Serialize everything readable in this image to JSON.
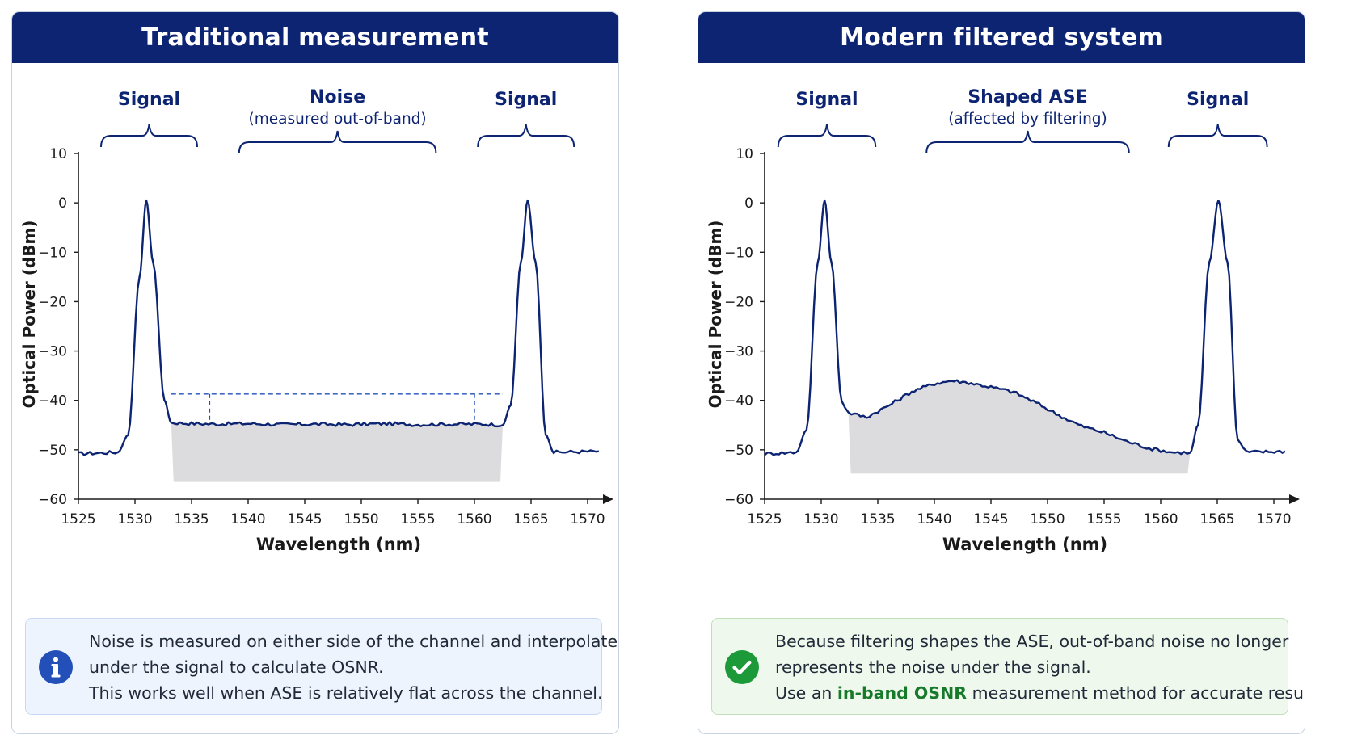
{
  "panels": [
    {
      "title": "Traditional measurement",
      "chart_data": {
        "type": "line",
        "xlabel": "Wavelength (nm)",
        "ylabel": "Optical Power (dBm)",
        "xlim": [
          1525,
          1571
        ],
        "ylim": [
          -60,
          10
        ],
        "xticks": [
          1525,
          1530,
          1535,
          1540,
          1545,
          1550,
          1555,
          1560,
          1565,
          1570
        ],
        "yticks": [
          10,
          0,
          -10,
          -20,
          -30,
          -40,
          -50,
          -60
        ],
        "grid": false,
        "series": [
          {
            "x": [
              1525,
              1528.5,
              1529.4,
              1530.4,
              1531,
              1531.6,
              1532.6,
              1533.2,
              1534,
              1537,
              1540,
              1543,
              1546,
              1549,
              1552,
              1555,
              1558,
              1561,
              1562.5,
              1563.2,
              1564.1,
              1564.7,
              1565.4,
              1566.3,
              1567,
              1571
            ],
            "y": [
              -50.8,
              -50.5,
              -47,
              -15,
              0.5,
              -12,
              -40,
              -44.5,
              -44.6,
              -44.8,
              -44.7,
              -44.9,
              -44.8,
              -44.9,
              -44.7,
              -44.9,
              -44.8,
              -44.8,
              -45,
              -41,
              -12,
              0.5,
              -12,
              -47,
              -50.5,
              -50.3
            ]
          }
        ],
        "noise_fill": {
          "x": [
            1533.2,
            1562.5
          ],
          "floor": -56.5
        },
        "interpolation_line": {
          "y": -38.7,
          "x": [
            1533.2,
            1562.5
          ],
          "markers_x": [
            1536.6,
            1560.0
          ]
        },
        "annotations": [
          {
            "label": "Signal",
            "sublabel": "",
            "x": [
              1527,
              1535.5
            ]
          },
          {
            "label": "Noise",
            "sublabel": "(measured out-of-band)",
            "x": [
              1539.2,
              1556.6
            ]
          },
          {
            "label": "Signal",
            "sublabel": "",
            "x": [
              1560.3,
              1568.8
            ]
          }
        ]
      },
      "note": {
        "variant": "info",
        "icon": "info-icon",
        "lines": [
          "Noise is measured on either side of the channel and interpolated",
          "under the signal to calculate OSNR.",
          "This works well when ASE is relatively flat across the channel."
        ]
      }
    },
    {
      "title": "Modern filtered system",
      "chart_data": {
        "type": "line",
        "xlabel": "Wavelength (nm)",
        "ylabel": "Optical Power (dBm)",
        "xlim": [
          1525,
          1571
        ],
        "ylim": [
          -60,
          10
        ],
        "xticks": [
          1525,
          1530,
          1535,
          1540,
          1545,
          1550,
          1555,
          1560,
          1565,
          1570
        ],
        "yticks": [
          10,
          0,
          -10,
          -20,
          -30,
          -40,
          -50,
          -60
        ],
        "grid": false,
        "series": [
          {
            "x": [
              1525,
              1527.8,
              1528.7,
              1529.7,
              1530.3,
              1530.9,
              1531.8,
              1532.4,
              1534,
              1536,
              1538,
              1540,
              1541.5,
              1543,
              1545,
              1547,
              1549,
              1551,
              1553,
              1555,
              1557,
              1559,
              1561,
              1562.6,
              1563.3,
              1564.3,
              1565.1,
              1565.9,
              1566.8,
              1567.6,
              1571
            ],
            "y": [
              -50.8,
              -50.5,
              -46,
              -12,
              0.5,
              -12,
              -40,
              -42.5,
              -43.4,
              -41,
              -38.2,
              -36.6,
              -36.0,
              -36.4,
              -37.3,
              -38.3,
              -40.5,
              -43,
              -45.2,
              -46.5,
              -48.3,
              -49.7,
              -50.5,
              -50.6,
              -45,
              -12,
              0.5,
              -12,
              -48,
              -50.5,
              -50.3
            ]
          }
        ],
        "noise_fill": {
          "x": [
            1532.4,
            1562.6
          ],
          "floor": -54.8
        },
        "annotations": [
          {
            "label": "Signal",
            "sublabel": "",
            "x": [
              1526.2,
              1534.8
            ]
          },
          {
            "label": "Shaped ASE",
            "sublabel": "(affected by filtering)",
            "x": [
              1539.3,
              1557.2
            ]
          },
          {
            "label": "Signal",
            "sublabel": "",
            "x": [
              1560.7,
              1569.4
            ]
          }
        ]
      },
      "note": {
        "variant": "success",
        "icon": "check-icon",
        "lines": [
          "Because filtering shapes the ASE, out-of-band noise no longer",
          "represents the noise under the signal."
        ],
        "last_line": {
          "before": "Use an ",
          "highlight": "in-band OSNR",
          "after": " measurement method for accurate results."
        }
      }
    }
  ],
  "colors": {
    "header_bg": "#0d2473",
    "trace": "#0d2473",
    "fill": "#dcdcde",
    "accent_blue": "#2350b8",
    "accent_green": "#1c9a3a",
    "highlight_text": "#177a2a"
  }
}
